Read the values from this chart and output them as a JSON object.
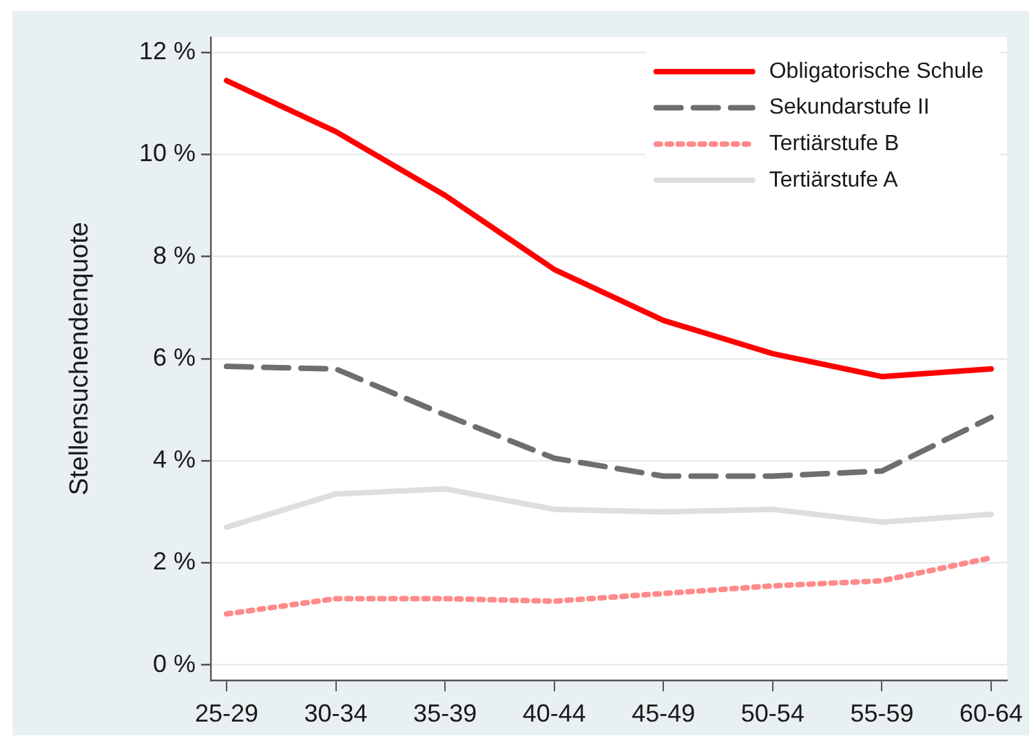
{
  "chart_data": {
    "type": "line",
    "ylabel": "Stellensuchendenquote",
    "categories": [
      "25-29",
      "30-34",
      "35-39",
      "40-44",
      "45-49",
      "50-54",
      "55-59",
      "60-64"
    ],
    "series": [
      {
        "name": "Obligatorische Schule",
        "color": "#ff0000",
        "line_style": "solid",
        "values": [
          11.45,
          10.45,
          9.2,
          7.75,
          6.75,
          6.1,
          5.65,
          5.8
        ]
      },
      {
        "name": "Sekundarstufe II",
        "color": "#6e6e6e",
        "line_style": "dashed",
        "values": [
          5.85,
          5.8,
          4.9,
          4.05,
          3.7,
          3.7,
          3.8,
          4.85
        ]
      },
      {
        "name": "Tertiärstufe B",
        "color": "#ff8a8a",
        "line_style": "dotted",
        "values": [
          1.0,
          1.3,
          1.3,
          1.25,
          1.4,
          1.55,
          1.65,
          2.1
        ]
      },
      {
        "name": "Tertiärstufe A",
        "color": "#dedede",
        "line_style": "solid",
        "values": [
          2.7,
          3.35,
          3.45,
          3.05,
          3.0,
          3.05,
          2.8,
          2.95
        ]
      }
    ],
    "ylim": [
      -0.3,
      12.3
    ],
    "yticks": [
      {
        "value": 0,
        "label": "0 %"
      },
      {
        "value": 2,
        "label": "2 %"
      },
      {
        "value": 4,
        "label": "4 %"
      },
      {
        "value": 6,
        "label": "6 %"
      },
      {
        "value": 8,
        "label": "8 %"
      },
      {
        "value": 10,
        "label": "10 %"
      },
      {
        "value": 12,
        "label": "12 %"
      }
    ],
    "grid": "y",
    "legend": "top right",
    "marker": "none"
  }
}
